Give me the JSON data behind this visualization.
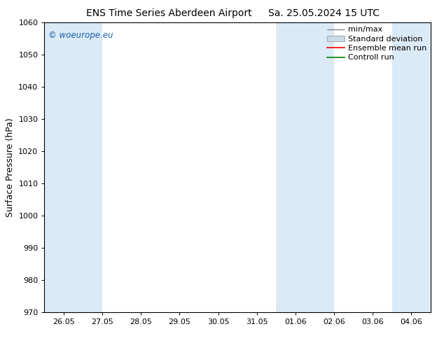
{
  "title": "ENS Time Series Aberdeen Airport",
  "title2": "Sa. 25.05.2024 15 UTC",
  "ylabel": "Surface Pressure (hPa)",
  "ylim": [
    970,
    1060
  ],
  "yticks": [
    970,
    980,
    990,
    1000,
    1010,
    1020,
    1030,
    1040,
    1050,
    1060
  ],
  "x_tick_labels": [
    "26.05",
    "27.05",
    "28.05",
    "29.05",
    "30.05",
    "31.05",
    "01.06",
    "02.06",
    "03.06",
    "04.06"
  ],
  "x_tick_positions": [
    0,
    1,
    2,
    3,
    4,
    5,
    6,
    7,
    8,
    9
  ],
  "xlim": [
    -0.5,
    9.5
  ],
  "shaded_bands": [
    {
      "xmin": -0.5,
      "xmax": 1.0
    },
    {
      "xmin": 5.5,
      "xmax": 7.0
    },
    {
      "xmin": 8.5,
      "xmax": 9.5
    }
  ],
  "shaded_color": "#daeaf7",
  "watermark_text": "© woeurope.eu",
  "watermark_color": "#1a5faa",
  "background_color": "#ffffff",
  "legend_items": [
    {
      "label": "min/max",
      "color": "#aaaaaa",
      "style": "minmax"
    },
    {
      "label": "Standard deviation",
      "color": "#c8dcea",
      "style": "band"
    },
    {
      "label": "Ensemble mean run",
      "color": "red",
      "style": "line"
    },
    {
      "label": "Controll run",
      "color": "green",
      "style": "line"
    }
  ],
  "title_fontsize": 10,
  "axis_label_fontsize": 9,
  "tick_fontsize": 8,
  "legend_fontsize": 8
}
